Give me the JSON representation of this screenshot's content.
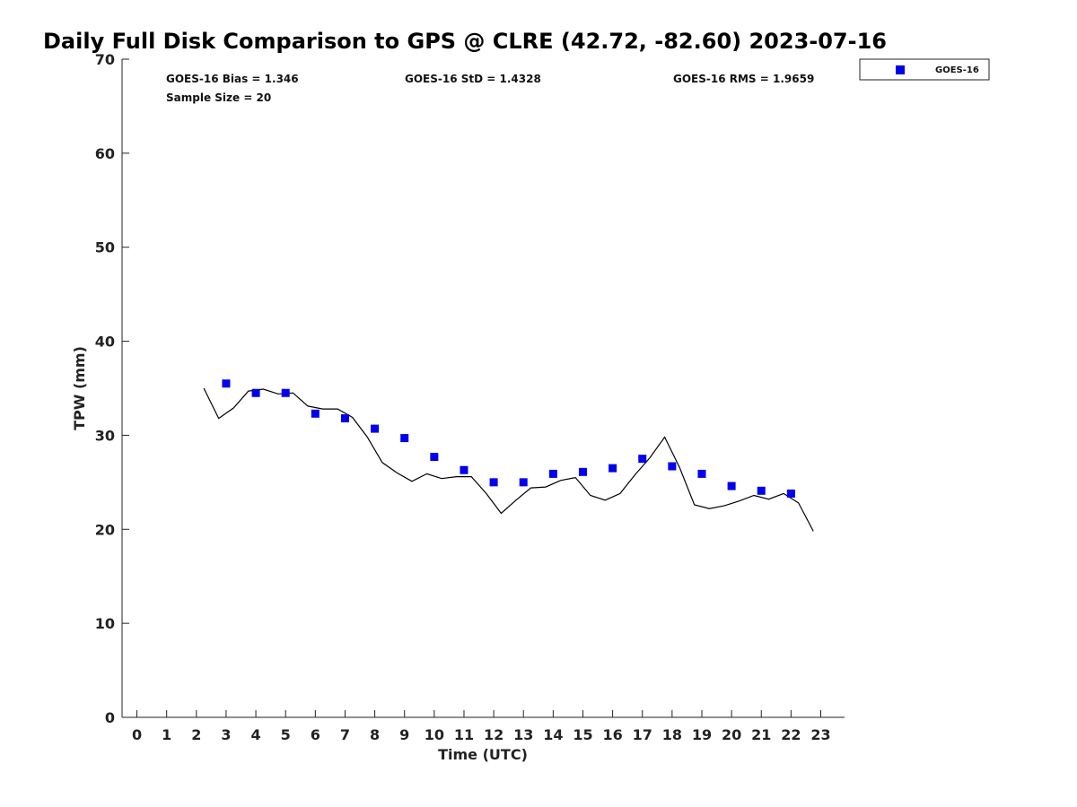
{
  "chart_data": {
    "type": "scatter",
    "title": "Daily Full Disk Comparison to GPS @ CLRE (42.72, -82.60) 2023-07-16",
    "xlabel": "Time (UTC)",
    "ylabel": "TPW (mm)",
    "xlim": [
      -0.5,
      23.8
    ],
    "ylim": [
      0,
      70
    ],
    "x_ticks": [
      0,
      1,
      2,
      3,
      4,
      5,
      6,
      7,
      8,
      9,
      10,
      11,
      12,
      13,
      14,
      15,
      16,
      17,
      18,
      19,
      20,
      21,
      22,
      23
    ],
    "y_ticks": [
      0,
      10,
      20,
      30,
      40,
      50,
      60,
      70
    ],
    "grid": false,
    "legend_position": "top-right (outside)",
    "stats": {
      "bias": "GOES-16 Bias = 1.346",
      "std": "GOES-16 StD = 1.4328",
      "rms": "GOES-16 RMS = 1.9659",
      "sample_size": "Sample Size = 20"
    },
    "series": [
      {
        "name": "GOES-16",
        "kind": "scatter",
        "marker": "square",
        "color": "#0000ee",
        "x": [
          3,
          4,
          5,
          6,
          7,
          8,
          9,
          10,
          11,
          12,
          13,
          14,
          15,
          16,
          17,
          18,
          19,
          20,
          21,
          22
        ],
        "y": [
          35.5,
          34.5,
          34.5,
          32.3,
          31.8,
          30.7,
          29.7,
          27.7,
          26.3,
          25.0,
          25.0,
          25.9,
          26.1,
          26.5,
          27.5,
          26.7,
          25.9,
          24.6,
          24.1,
          23.8
        ]
      },
      {
        "kind": "line",
        "color": "#000000",
        "x": [
          2.25,
          2.75,
          3.25,
          3.75,
          4.0,
          4.25,
          4.75,
          5.25,
          5.75,
          6.25,
          6.75,
          7.25,
          7.75,
          8.25,
          8.75,
          9.25,
          9.75,
          10.25,
          10.75,
          11.25,
          11.75,
          12.25,
          12.75,
          13.25,
          13.75,
          14.25,
          14.75,
          15.25,
          15.75,
          16.25,
          16.75,
          17.25,
          17.75,
          18.25,
          18.75,
          19.25,
          19.75,
          20.25,
          20.75,
          21.25,
          21.75,
          22.25,
          22.75
        ],
        "y": [
          35.0,
          31.8,
          32.9,
          34.7,
          34.8,
          34.9,
          34.4,
          34.5,
          33.1,
          32.8,
          32.8,
          31.9,
          29.8,
          27.1,
          26.0,
          25.1,
          25.9,
          25.4,
          25.6,
          25.6,
          23.8,
          21.7,
          23.1,
          24.4,
          24.5,
          25.2,
          25.5,
          23.6,
          23.1,
          23.8,
          25.8,
          27.6,
          29.8,
          26.6,
          22.6,
          22.2,
          22.5,
          23.0,
          23.6,
          23.2,
          23.8,
          22.8,
          19.8
        ]
      }
    ]
  }
}
